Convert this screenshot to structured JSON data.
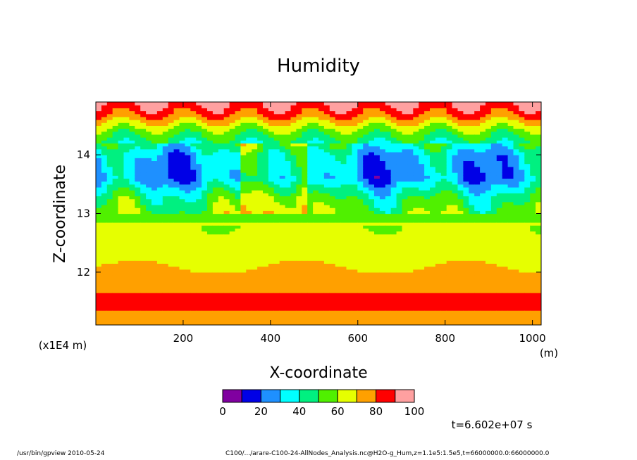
{
  "chart_data": {
    "type": "heatmap",
    "title": "Humidity",
    "xlabel": "X-coordinate",
    "ylabel": "Z-coordinate",
    "x_unit": "(m)",
    "y_unit": "(x1E4 m)",
    "xlim": [
      0,
      1020
    ],
    "ylim": [
      11.1,
      14.9
    ],
    "x_ticks": [
      200,
      400,
      600,
      800,
      1000
    ],
    "x_tick_labels": [
      "200",
      "400",
      "600",
      "800",
      "1000"
    ],
    "y_ticks": [
      12,
      13,
      14
    ],
    "y_tick_labels": [
      "12",
      "13",
      "14"
    ],
    "colorbar": {
      "levels": [
        0,
        10,
        20,
        30,
        40,
        50,
        60,
        70,
        80,
        90,
        100
      ],
      "labels": [
        "0",
        "20",
        "40",
        "60",
        "80",
        "100"
      ],
      "label_values": [
        0,
        20,
        40,
        60,
        80,
        100
      ],
      "colors": [
        "#8000a0",
        "#0000e6",
        "#1e90ff",
        "#00ffff",
        "#00f080",
        "#50f000",
        "#e6ff00",
        "#ffa000",
        "#ff0000",
        "#ffa0a0"
      ]
    },
    "z_profile_description_levels": [
      {
        "z": 11.1,
        "value": 72
      },
      {
        "z": 11.3,
        "value": 72
      },
      {
        "z": 11.4,
        "value": 85
      },
      {
        "z": 11.6,
        "value": 85
      },
      {
        "z": 11.7,
        "value": 75
      },
      {
        "z": 12.0,
        "value": 72
      },
      {
        "z": 12.3,
        "value": 65
      },
      {
        "z": 12.8,
        "value": 62
      },
      {
        "z": 13.0,
        "value": 55
      },
      {
        "z": 13.3,
        "value": 45
      },
      {
        "z": 13.6,
        "value": 25
      },
      {
        "z": 14.0,
        "value": 30
      },
      {
        "z": 14.4,
        "value": 55
      },
      {
        "z": 14.7,
        "value": 82
      },
      {
        "z": 14.9,
        "value": 92
      }
    ]
  },
  "annotation": {
    "time": "t=6.602e+07 s"
  },
  "footer": {
    "left": "/usr/bin/gpview   2010-05-24",
    "right": "C100/.../arare-C100-24-AllNodes_Analysis.nc@H2O-g_Hum,z=1.1e5:1.5e5,t=66000000.0:66000000.0"
  }
}
